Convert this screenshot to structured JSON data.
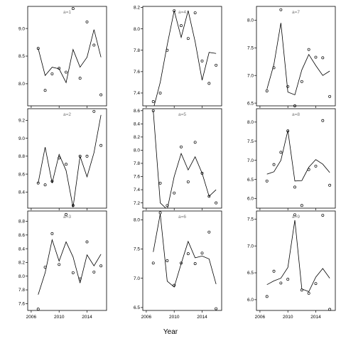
{
  "chart_data": {
    "type": "scatter",
    "layout": "3x3 small multiples, shared x axis",
    "xlabel": "Year",
    "xlim": [
      2005.5,
      2016.8
    ],
    "xticks": [
      2006,
      2010,
      2014
    ],
    "panels": [
      {
        "title": "a=1",
        "ylim": [
          7.6,
          9.4
        ],
        "yticks": [
          "8.0",
          "8.5",
          "9.0"
        ],
        "yvals": [
          8.0,
          8.5,
          9.0
        ],
        "points": {
          "x": [
            2007,
            2008,
            2009,
            2010,
            2011,
            2012,
            2013,
            2014,
            2015,
            2016
          ],
          "y": [
            8.64,
            7.88,
            8.18,
            8.28,
            8.21,
            9.36,
            8.1,
            9.12,
            8.7,
            7.8
          ]
        },
        "line": {
          "x": [
            2007,
            2008,
            2009,
            2010,
            2011,
            2012,
            2013,
            2014,
            2015,
            2016
          ],
          "y": [
            8.64,
            8.15,
            8.3,
            8.27,
            8.02,
            8.62,
            8.3,
            8.48,
            8.98,
            8.48
          ]
        }
      },
      {
        "title": "a=4",
        "ylim": [
          7.28,
          8.21
        ],
        "yticks": [
          "7.4",
          "7.6",
          "7.8",
          "8.0",
          "8.2"
        ],
        "yvals": [
          7.4,
          7.6,
          7.8,
          8.0,
          8.2
        ],
        "points": {
          "x": [
            2007,
            2008,
            2009,
            2010,
            2011,
            2012,
            2013,
            2014,
            2015,
            2016
          ],
          "y": [
            7.32,
            7.4,
            7.8,
            8.17,
            8.03,
            7.91,
            8.15,
            7.7,
            7.49,
            7.66
          ]
        },
        "line": {
          "x": [
            2007,
            2008,
            2009,
            2010,
            2011,
            2012,
            2013,
            2014,
            2015,
            2016
          ],
          "y": [
            7.25,
            7.5,
            7.85,
            8.17,
            7.92,
            8.17,
            7.88,
            7.52,
            7.78,
            7.77
          ]
        }
      },
      {
        "title": "a=7",
        "ylim": [
          6.45,
          8.25
        ],
        "yticks": [
          "6.5",
          "7.0",
          "7.5",
          "8.0"
        ],
        "yvals": [
          6.5,
          7.0,
          7.5,
          8.0
        ],
        "points": {
          "x": [
            2007,
            2008,
            2009,
            2010,
            2011,
            2012,
            2013,
            2014,
            2015,
            2016
          ],
          "y": [
            6.72,
            7.14,
            8.19,
            6.8,
            6.45,
            6.89,
            7.47,
            7.33,
            7.32,
            6.62
          ]
        },
        "line": {
          "x": [
            2007,
            2008,
            2009,
            2010,
            2011,
            2012,
            2013,
            2014,
            2015,
            2016
          ],
          "y": [
            6.75,
            7.2,
            7.95,
            6.7,
            6.65,
            7.1,
            7.38,
            7.18,
            7.0,
            7.08
          ]
        }
      },
      {
        "title": "a=2",
        "ylim": [
          8.22,
          9.33
        ],
        "yticks": [
          "8.4",
          "8.6",
          "8.8",
          "9.0",
          "9.2"
        ],
        "yvals": [
          8.4,
          8.6,
          8.8,
          9.0,
          9.2
        ],
        "points": {
          "x": [
            2007,
            2008,
            2009,
            2010,
            2011,
            2012,
            2013,
            2014,
            2015,
            2016
          ],
          "y": [
            8.5,
            8.48,
            8.52,
            8.78,
            8.71,
            8.25,
            8.8,
            8.8,
            9.3,
            8.92
          ]
        },
        "line": {
          "x": [
            2007,
            2008,
            2009,
            2010,
            2011,
            2012,
            2013,
            2014,
            2015,
            2016
          ],
          "y": [
            8.5,
            8.9,
            8.5,
            8.82,
            8.64,
            8.23,
            8.8,
            8.57,
            8.84,
            9.26
          ]
        }
      },
      {
        "title": "a=5",
        "ylim": [
          7.12,
          8.63
        ],
        "yticks": [
          "7.2",
          "7.4",
          "7.6",
          "7.8",
          "8.0",
          "8.2",
          "8.4",
          "8.6"
        ],
        "yvals": [
          7.2,
          7.4,
          7.6,
          7.8,
          8.0,
          8.2,
          8.4,
          8.6
        ],
        "points": {
          "x": [
            2007,
            2008,
            2009,
            2010,
            2011,
            2012,
            2013,
            2014,
            2015,
            2016
          ],
          "y": [
            8.6,
            7.5,
            7.16,
            7.35,
            8.05,
            7.52,
            8.12,
            7.65,
            7.3,
            7.2
          ]
        },
        "line": {
          "x": [
            2007,
            2008,
            2009,
            2010,
            2011,
            2012,
            2013,
            2014,
            2015,
            2016
          ],
          "y": [
            8.6,
            7.2,
            7.1,
            7.6,
            7.95,
            7.7,
            7.9,
            7.65,
            7.3,
            7.4
          ]
        }
      },
      {
        "title": "a=8",
        "ylim": [
          5.75,
          8.35
        ],
        "yticks": [
          "6.0",
          "6.5",
          "7.0",
          "7.5",
          "8.0"
        ],
        "yvals": [
          6.0,
          6.5,
          7.0,
          7.5,
          8.0
        ],
        "points": {
          "x": [
            2007,
            2008,
            2009,
            2010,
            2011,
            2012,
            2013,
            2014,
            2015,
            2016
          ],
          "y": [
            6.46,
            6.89,
            7.21,
            7.77,
            6.3,
            5.82,
            6.76,
            6.85,
            8.04,
            6.35
          ]
        },
        "line": {
          "x": [
            2007,
            2008,
            2009,
            2010,
            2011,
            2012,
            2013,
            2014,
            2015,
            2016
          ],
          "y": [
            6.64,
            6.7,
            7.0,
            7.78,
            6.46,
            6.47,
            6.82,
            7.02,
            6.9,
            6.68
          ]
        }
      },
      {
        "title": "a=3",
        "ylim": [
          7.5,
          8.95
        ],
        "yticks": [
          "7.6",
          "7.8",
          "8.0",
          "8.2",
          "8.4",
          "8.6",
          "8.8"
        ],
        "yvals": [
          7.6,
          7.8,
          8.0,
          8.2,
          8.4,
          8.6,
          8.8
        ],
        "points": {
          "x": [
            2007,
            2008,
            2009,
            2010,
            2011,
            2012,
            2013,
            2014,
            2015,
            2016
          ],
          "y": [
            7.52,
            8.13,
            8.62,
            8.17,
            8.9,
            8.05,
            7.96,
            8.5,
            8.06,
            8.15
          ]
        },
        "line": {
          "x": [
            2007,
            2008,
            2009,
            2010,
            2011,
            2012,
            2013,
            2014,
            2015,
            2016
          ],
          "y": [
            7.73,
            8.05,
            8.53,
            8.22,
            8.5,
            8.28,
            7.9,
            8.31,
            8.15,
            8.32
          ]
        }
      },
      {
        "title": "a=6",
        "ylim": [
          6.45,
          8.15
        ],
        "yticks": [
          "6.5",
          "7.0",
          "7.5",
          "8.0"
        ],
        "yvals": [
          6.5,
          7.0,
          7.5,
          8.0
        ],
        "points": {
          "x": [
            2007,
            2008,
            2009,
            2010,
            2011,
            2012,
            2013,
            2014,
            2015,
            2016
          ],
          "y": [
            7.26,
            8.12,
            7.3,
            6.88,
            7.26,
            7.42,
            7.25,
            7.43,
            7.79,
            6.48
          ]
        },
        "line": {
          "x": [
            2007,
            2008,
            2009,
            2010,
            2011,
            2012,
            2013,
            2014,
            2015,
            2016
          ],
          "y": [
            7.45,
            8.1,
            6.95,
            6.85,
            7.25,
            7.63,
            7.35,
            7.38,
            7.33,
            6.9
          ]
        }
      },
      {
        "title": "a=9",
        "ylim": [
          5.8,
          7.65
        ],
        "yticks": [
          "6.0",
          "6.5",
          "7.0",
          "7.5"
        ],
        "yvals": [
          6.0,
          6.5,
          7.0,
          7.5
        ],
        "points": {
          "x": [
            2007,
            2008,
            2009,
            2010,
            2011,
            2012,
            2013,
            2014,
            2015,
            2016
          ],
          "y": [
            6.06,
            6.53,
            6.31,
            6.38,
            7.58,
            6.18,
            6.12,
            6.3,
            7.57,
            5.82
          ]
        },
        "line": {
          "x": [
            2007,
            2008,
            2009,
            2010,
            2011,
            2012,
            2013,
            2014,
            2015,
            2016
          ],
          "y": [
            6.28,
            6.35,
            6.4,
            6.6,
            7.48,
            6.2,
            6.15,
            6.42,
            6.58,
            6.4
          ]
        }
      }
    ]
  }
}
